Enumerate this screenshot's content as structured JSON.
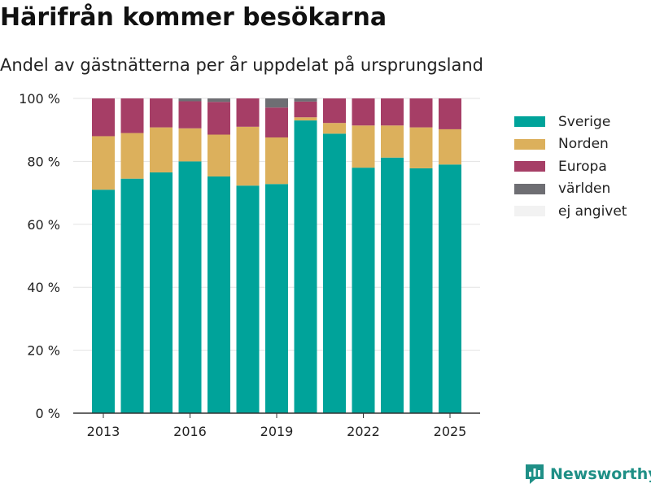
{
  "chart_data": {
    "type": "bar",
    "stacked": true,
    "title": "Härifrån kommer besökarna",
    "subtitle": "Andel av gästnätterna per år uppdelat på ursprungsland",
    "xlabel": "",
    "ylabel": "",
    "ylim": [
      0,
      100
    ],
    "grid": true,
    "legend_placement": "right",
    "categories": [
      "2013",
      "2014",
      "2015",
      "2016",
      "2017",
      "2018",
      "2019",
      "2020",
      "2021",
      "2022",
      "2023",
      "2024",
      "2025"
    ],
    "x_tick_labels": [
      "2013",
      "2016",
      "2019",
      "2022",
      "2025"
    ],
    "y_tick_labels": [
      "0 %",
      "20 %",
      "40 %",
      "60 %",
      "80 %",
      "100 %"
    ],
    "y_ticks": [
      0,
      20,
      40,
      60,
      80,
      100
    ],
    "series": [
      {
        "name": "Sverige",
        "color": "#00a39a",
        "values": [
          71.0,
          74.5,
          76.5,
          80.0,
          75.2,
          72.3,
          72.8,
          93.0,
          88.8,
          78.0,
          81.2,
          77.8,
          79.0
        ]
      },
      {
        "name": "Norden",
        "color": "#dcb05c",
        "values": [
          17.0,
          14.5,
          14.3,
          10.5,
          13.3,
          18.7,
          14.8,
          1.0,
          3.4,
          13.4,
          10.2,
          13.0,
          11.2
        ]
      },
      {
        "name": "Europa",
        "color": "#a63e66",
        "values": [
          12.0,
          11.0,
          9.2,
          8.6,
          10.4,
          9.0,
          9.5,
          5.0,
          7.8,
          8.6,
          8.6,
          9.2,
          9.8
        ]
      },
      {
        "name": "världen",
        "color": "#6e6e73",
        "values": [
          0,
          0,
          0,
          0.9,
          1.1,
          0,
          2.9,
          1.0,
          0,
          0,
          0,
          0,
          0
        ]
      },
      {
        "name": "ej angivet",
        "color": "#f2f2f2",
        "values": [
          0,
          0,
          0,
          0,
          0,
          0,
          0,
          0,
          0,
          0,
          0,
          0,
          0
        ]
      }
    ]
  },
  "brand": {
    "name": "Newsworthy",
    "icon": "newsworthy-logo-icon",
    "color": "#1f8f86"
  }
}
